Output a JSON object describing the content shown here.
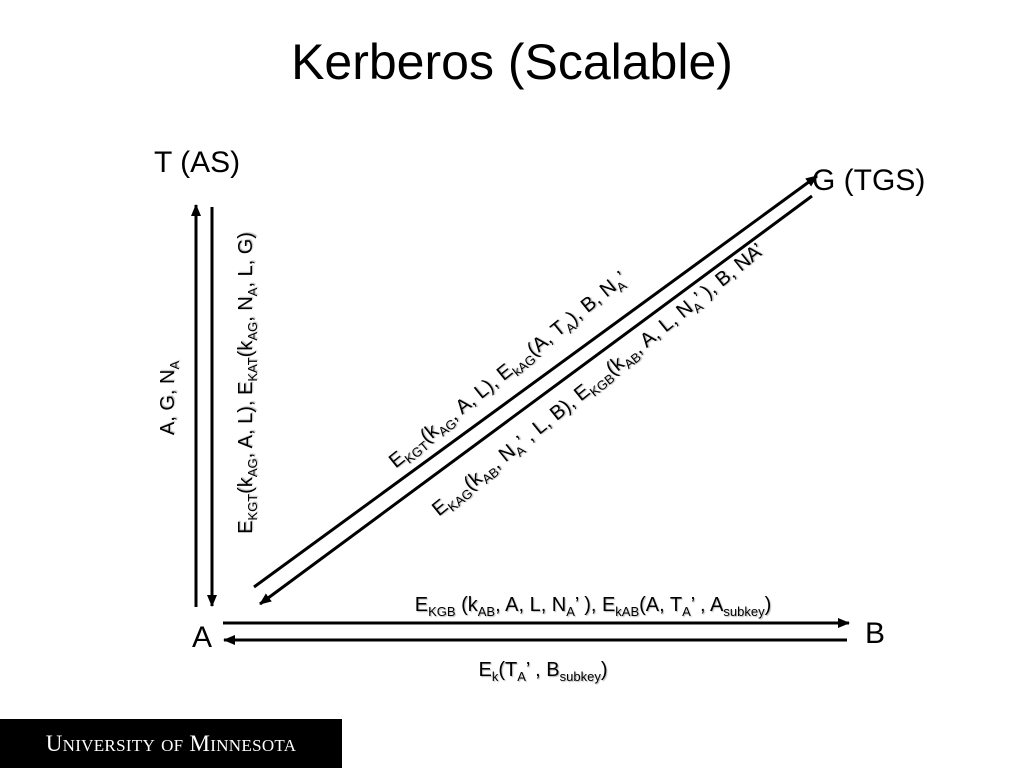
{
  "title": "Kerberos (Scalable)",
  "nodes": {
    "as": "T (AS)",
    "tgs": "G (TGS)",
    "client": "A",
    "server": "B"
  },
  "messages": {
    "a_to_t": "A, G, N",
    "t_to_a": "E(k, A, L), E(k, N, L, G)",
    "a_to_g": "E(k, A, L), E(A, T), B, N’",
    "g_to_a": "E(k, N’ , L, B), E(k, A, L, N’ ), B, NA’",
    "a_to_b": "E (k, A, L, N’ ), E(A, T’ , A)",
    "b_to_a": "E(T’ , B)"
  },
  "logo": "University of Minnesota",
  "colors": {
    "arrow": "#000000",
    "logo_bg": "#000000",
    "logo_text": "#ffffff"
  }
}
